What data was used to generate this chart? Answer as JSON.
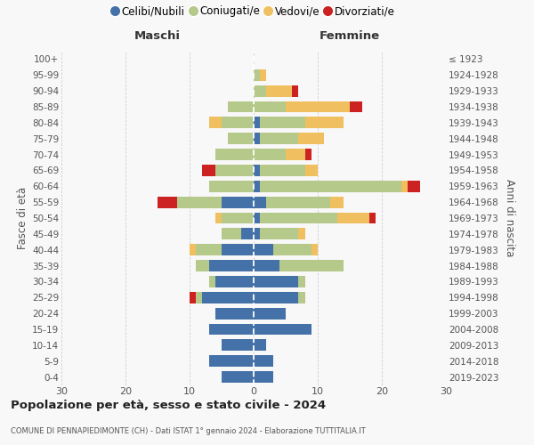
{
  "age_groups": [
    "0-4",
    "5-9",
    "10-14",
    "15-19",
    "20-24",
    "25-29",
    "30-34",
    "35-39",
    "40-44",
    "45-49",
    "50-54",
    "55-59",
    "60-64",
    "65-69",
    "70-74",
    "75-79",
    "80-84",
    "85-89",
    "90-94",
    "95-99",
    "100+"
  ],
  "birth_years": [
    "2019-2023",
    "2014-2018",
    "2009-2013",
    "2004-2008",
    "1999-2003",
    "1994-1998",
    "1989-1993",
    "1984-1988",
    "1979-1983",
    "1974-1978",
    "1969-1973",
    "1964-1968",
    "1959-1963",
    "1954-1958",
    "1949-1953",
    "1944-1948",
    "1939-1943",
    "1934-1938",
    "1929-1933",
    "1924-1928",
    "≤ 1923"
  ],
  "male_celibi": [
    5,
    7,
    5,
    7,
    6,
    8,
    6,
    7,
    5,
    2,
    0,
    5,
    0,
    0,
    0,
    0,
    0,
    0,
    0,
    0,
    0
  ],
  "male_coniugati": [
    0,
    0,
    0,
    0,
    0,
    1,
    1,
    2,
    4,
    3,
    5,
    7,
    7,
    6,
    6,
    4,
    5,
    4,
    0,
    0,
    0
  ],
  "male_vedovi": [
    0,
    0,
    0,
    0,
    0,
    0,
    0,
    0,
    1,
    0,
    1,
    0,
    0,
    0,
    0,
    0,
    2,
    0,
    0,
    0,
    0
  ],
  "male_divorziati": [
    0,
    0,
    0,
    0,
    0,
    1,
    0,
    0,
    0,
    0,
    0,
    3,
    0,
    2,
    0,
    0,
    0,
    0,
    0,
    0,
    0
  ],
  "female_nubili": [
    3,
    3,
    2,
    9,
    5,
    7,
    7,
    4,
    3,
    1,
    1,
    2,
    1,
    1,
    0,
    1,
    1,
    0,
    0,
    0,
    0
  ],
  "female_coniugate": [
    0,
    0,
    0,
    0,
    0,
    1,
    1,
    10,
    6,
    6,
    12,
    10,
    22,
    7,
    5,
    6,
    7,
    5,
    2,
    1,
    0
  ],
  "female_vedove": [
    0,
    0,
    0,
    0,
    0,
    0,
    0,
    0,
    1,
    1,
    5,
    2,
    1,
    2,
    3,
    4,
    6,
    10,
    4,
    1,
    0
  ],
  "female_divorziate": [
    0,
    0,
    0,
    0,
    0,
    0,
    0,
    0,
    0,
    0,
    1,
    0,
    2,
    0,
    1,
    0,
    0,
    2,
    1,
    0,
    0
  ],
  "color_celibi": "#4472a8",
  "color_coniugati": "#b5c98a",
  "color_vedovi": "#f0c060",
  "color_divorziati": "#cc2222",
  "legend_labels": [
    "Celibi/Nubili",
    "Coniugati/e",
    "Vedovi/e",
    "Divorziati/e"
  ],
  "maschi_label": "Maschi",
  "femmine_label": "Femmine",
  "ylabel_left": "Fasce di età",
  "ylabel_right": "Anni di nascita",
  "title": "Popolazione per età, sesso e stato civile - 2024",
  "subtitle": "COMUNE DI PENNAPIEDIMONTE (CH) - Dati ISTAT 1° gennaio 2024 - Elaborazione TUTTITALIA.IT",
  "xlim": 30,
  "bg_color": "#f8f8f8",
  "grid_color": "#cccccc"
}
